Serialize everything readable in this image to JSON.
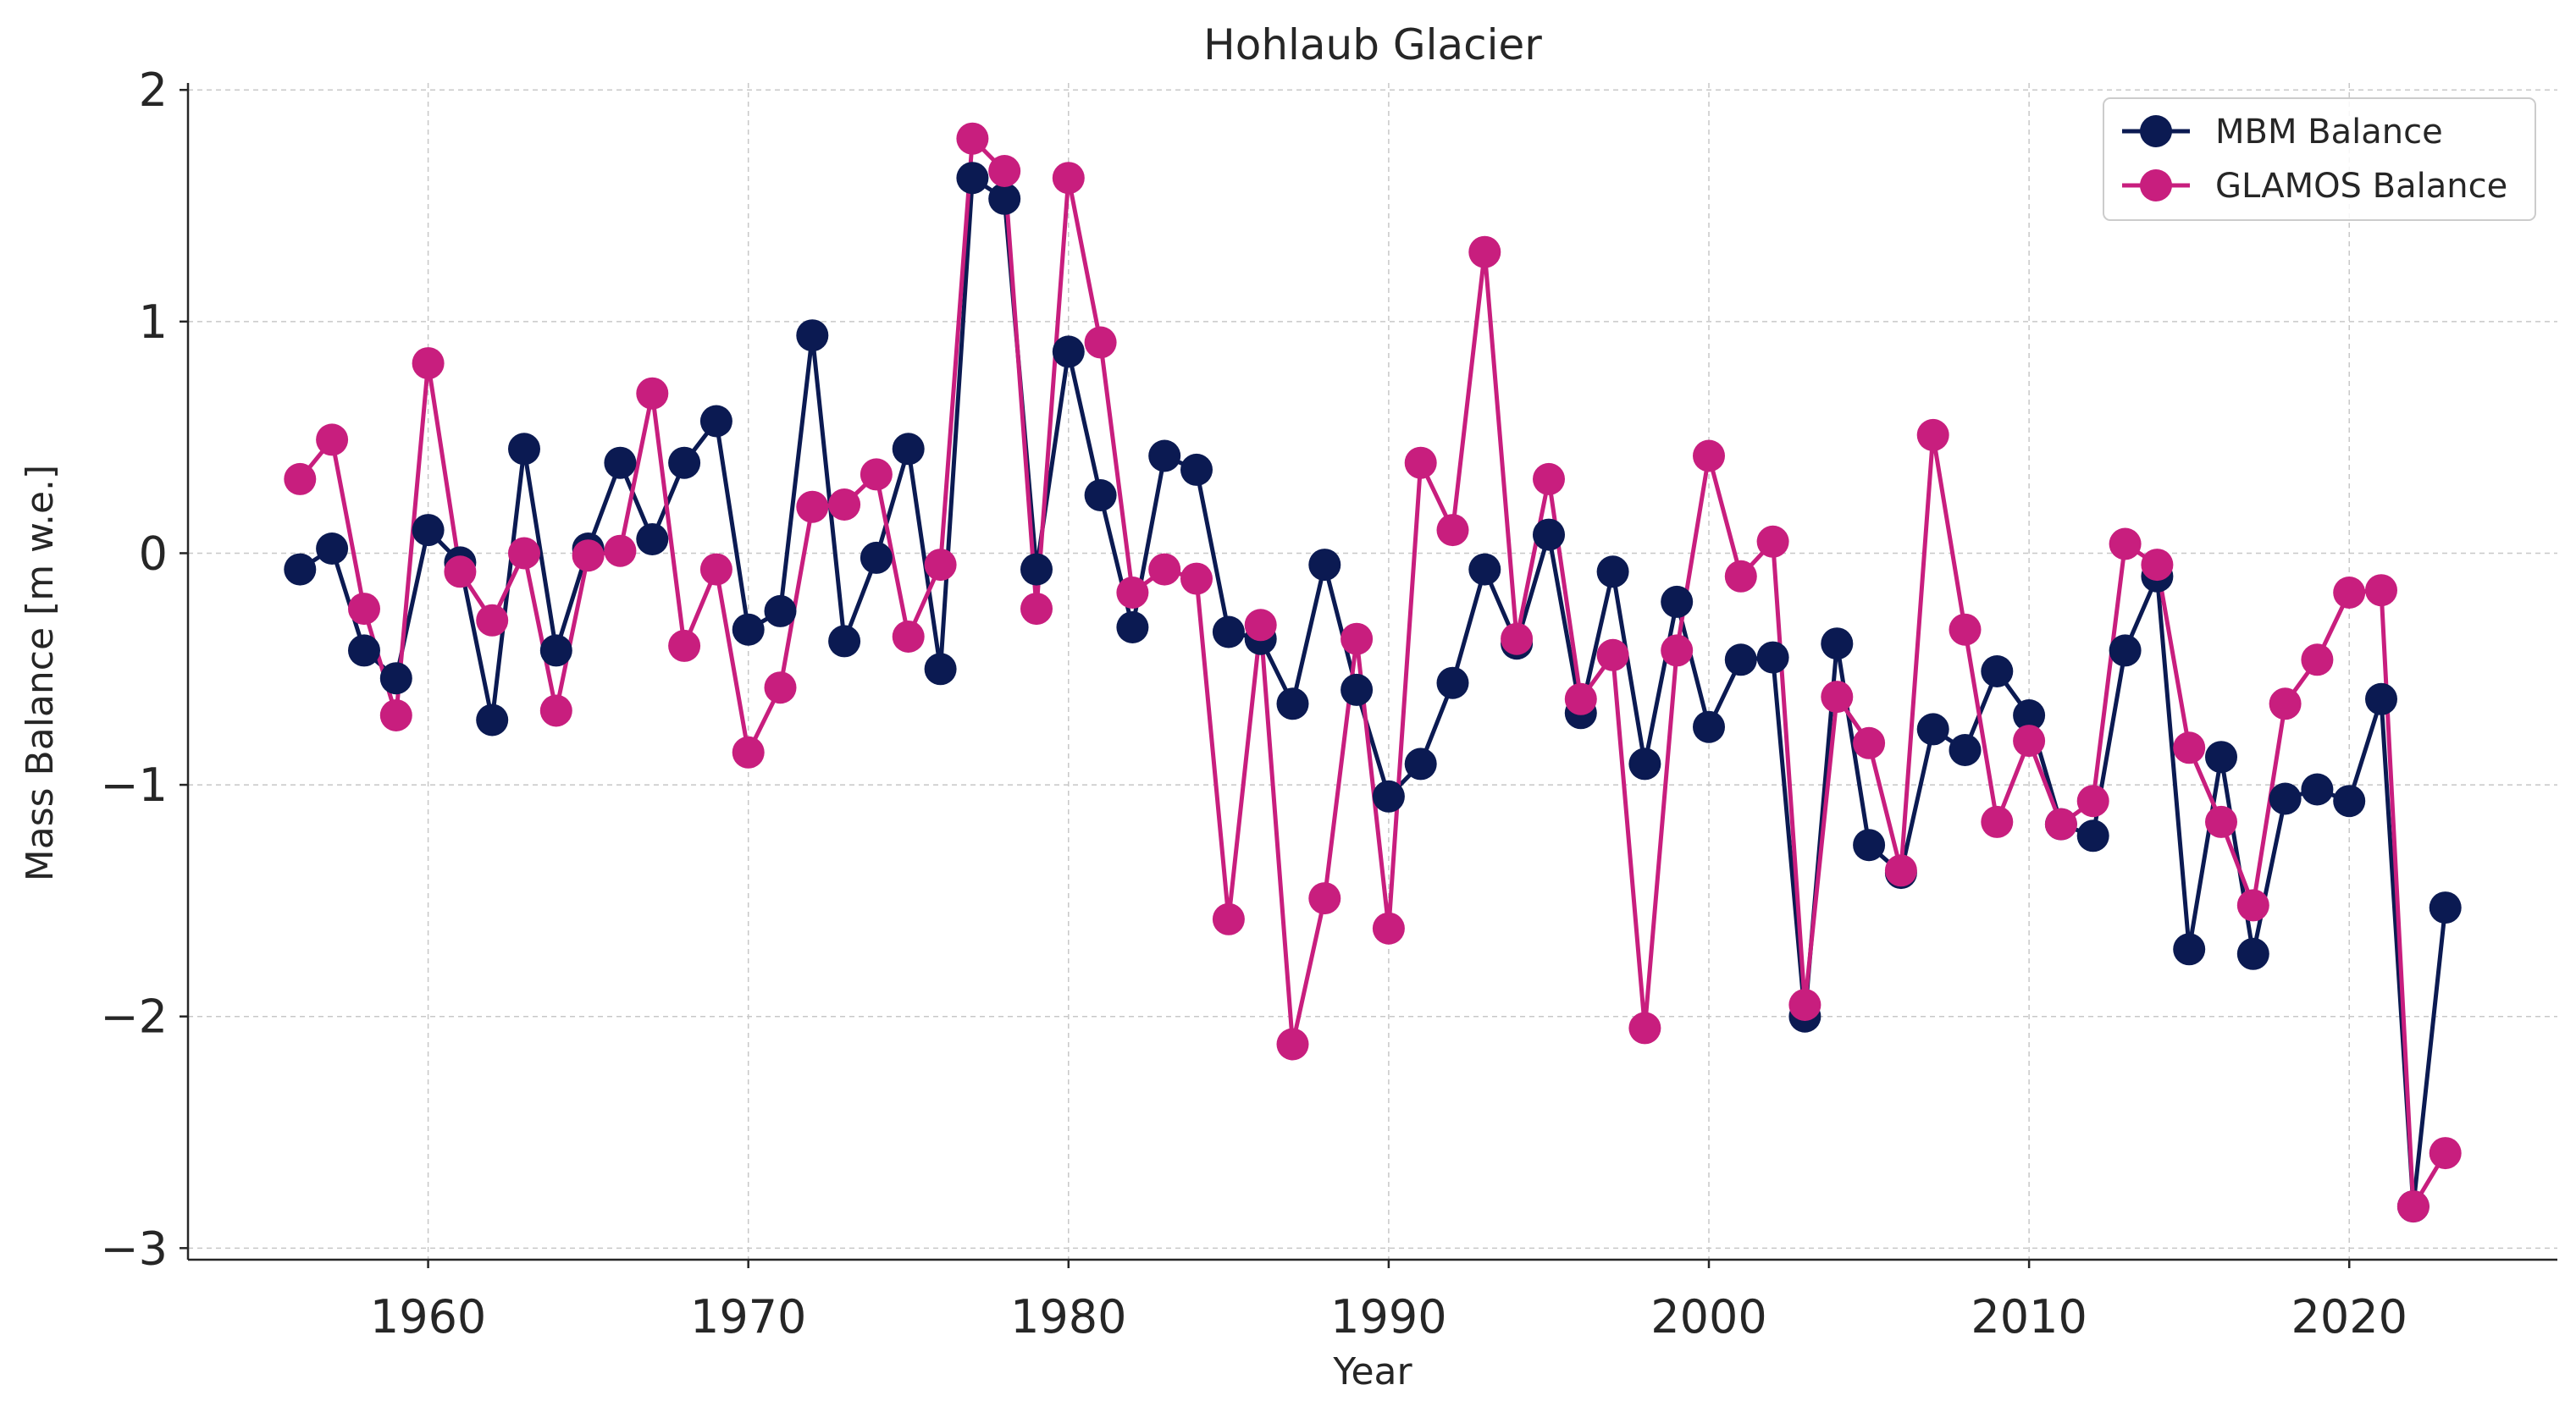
{
  "chart_data": {
    "type": "line",
    "title": "Hohlaub Glacier",
    "xlabel": "Year",
    "ylabel": "Mass Balance [m w.e.]",
    "xlim": [
      1952.5,
      2026.5
    ],
    "ylim": [
      -3.05,
      2.03
    ],
    "xticks": [
      "1960",
      "1970",
      "1980",
      "1990",
      "2000",
      "2010",
      "2020"
    ],
    "yticks": [
      "2",
      "1",
      "0",
      "−1",
      "−2",
      "−3"
    ],
    "grid": true,
    "legend_position": "top-right",
    "x": [
      1956,
      1957,
      1958,
      1959,
      1960,
      1961,
      1962,
      1963,
      1964,
      1965,
      1966,
      1967,
      1968,
      1969,
      1970,
      1971,
      1972,
      1973,
      1974,
      1975,
      1976,
      1977,
      1978,
      1979,
      1980,
      1981,
      1982,
      1983,
      1984,
      1985,
      1986,
      1987,
      1988,
      1989,
      1990,
      1991,
      1992,
      1993,
      1994,
      1995,
      1996,
      1997,
      1998,
      1999,
      2000,
      2001,
      2002,
      2003,
      2004,
      2005,
      2006,
      2007,
      2008,
      2009,
      2010,
      2011,
      2012,
      2013,
      2014,
      2015,
      2016,
      2017,
      2018,
      2019,
      2020,
      2021,
      2022,
      2023
    ],
    "series": [
      {
        "name": "MBM Balance",
        "color": "#0b1a52",
        "values": [
          -0.07,
          0.02,
          -0.42,
          -0.54,
          0.1,
          -0.04,
          -0.72,
          0.45,
          -0.42,
          0.02,
          0.39,
          0.06,
          0.39,
          0.57,
          -0.33,
          -0.25,
          0.94,
          -0.38,
          -0.02,
          0.45,
          -0.5,
          1.62,
          1.53,
          -0.07,
          0.87,
          0.25,
          -0.32,
          0.42,
          0.36,
          -0.34,
          -0.37,
          -0.65,
          -0.05,
          -0.59,
          -1.05,
          -0.91,
          -0.56,
          -0.07,
          -0.39,
          0.08,
          -0.69,
          -0.08,
          -0.91,
          -0.21,
          -0.75,
          -0.46,
          -0.45,
          -2.0,
          -0.39,
          -1.26,
          -1.38,
          -0.76,
          -0.85,
          -0.51,
          -0.7,
          -1.17,
          -1.22,
          -0.42,
          -0.1,
          -1.71,
          -0.88,
          -1.73,
          -1.06,
          -1.02,
          -1.07,
          -0.63,
          -2.82,
          -1.53
        ]
      },
      {
        "name": "GLAMOS Balance",
        "color": "#c81e7e",
        "values": [
          0.32,
          0.49,
          -0.24,
          -0.7,
          0.82,
          -0.08,
          -0.29,
          0.0,
          -0.68,
          -0.01,
          0.01,
          0.69,
          -0.4,
          -0.07,
          -0.86,
          -0.58,
          0.2,
          0.21,
          0.34,
          -0.36,
          -0.05,
          1.79,
          1.65,
          -0.24,
          1.62,
          0.91,
          -0.17,
          -0.07,
          -0.11,
          -1.58,
          -0.31,
          -2.12,
          -1.49,
          -0.37,
          -1.62,
          0.39,
          0.1,
          1.3,
          -0.37,
          0.32,
          -0.63,
          -0.44,
          -2.05,
          -0.42,
          0.42,
          -0.1,
          0.05,
          -1.95,
          -0.62,
          -0.82,
          -1.37,
          0.51,
          -0.33,
          -1.16,
          -0.81,
          -1.17,
          -1.07,
          0.04,
          -0.05,
          -0.84,
          -1.16,
          -1.52,
          -0.65,
          -0.46,
          -0.17,
          -0.16,
          -2.82,
          -2.59
        ]
      }
    ]
  }
}
